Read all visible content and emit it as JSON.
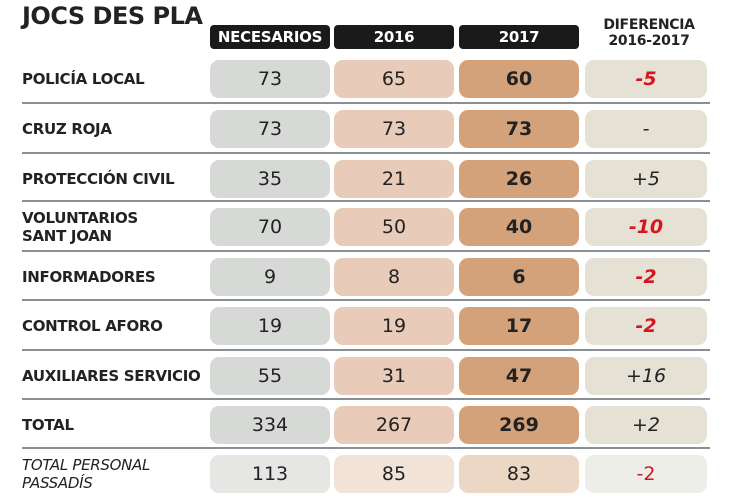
{
  "chart_data": {
    "type": "table",
    "title": "JOCS DES PLA",
    "columns": [
      "NECESARIOS",
      "2016",
      "2017",
      "DIFERENCIA 2016-2017"
    ],
    "rows": [
      {
        "label": "POLICÍA LOCAL",
        "necesarios": "73",
        "y2016": "65",
        "y2017": "60",
        "diferencia": "-5",
        "negative": true
      },
      {
        "label": "CRUZ ROJA",
        "necesarios": "73",
        "y2016": "73",
        "y2017": "73",
        "diferencia": "-",
        "negative": false
      },
      {
        "label": "PROTECCIÓN CIVIL",
        "necesarios": "35",
        "y2016": "21",
        "y2017": "26",
        "diferencia": "+5",
        "negative": false
      },
      {
        "label": "VOLUNTARIOS SANT JOAN",
        "label_lines": [
          "VOLUNTARIOS",
          "SANT JOAN"
        ],
        "necesarios": "70",
        "y2016": "50",
        "y2017": "40",
        "diferencia": "-10",
        "negative": true
      },
      {
        "label": "INFORMADORES",
        "necesarios": "9",
        "y2016": "8",
        "y2017": "6",
        "diferencia": "-2",
        "negative": true
      },
      {
        "label": "CONTROL AFORO",
        "necesarios": "19",
        "y2016": "19",
        "y2017": "17",
        "diferencia": "-2",
        "negative": true
      },
      {
        "label": "AUXILIARES SERVICIO",
        "necesarios": "55",
        "y2016": "31",
        "y2017": "47",
        "diferencia": "+16",
        "negative": false
      },
      {
        "label": "TOTAL",
        "necesarios": "334",
        "y2016": "267",
        "y2017": "269",
        "diferencia": "+2",
        "negative": false
      },
      {
        "label": "TOTAL PERSONAL PASSADÍS",
        "label_lines": [
          "TOTAL PERSONAL",
          "PASSADÍS"
        ],
        "necesarios": "113",
        "y2016": "85",
        "y2017": "83",
        "diferencia": "-2",
        "negative": true
      }
    ]
  },
  "header": {
    "title": "JOCS DES PLA",
    "col_necesarios": "NECESARIOS",
    "col_2016": "2016",
    "col_2017": "2017",
    "col_diff_line1": "DIFERENCIA",
    "col_diff_line2": "2016-2017"
  },
  "colors": {
    "necesarios": "#d7d9d7",
    "y2016": "#e8cbb8",
    "y2017": "#d3a27a",
    "diferencia": "#e5e2d5",
    "negative_text": "#d8141f",
    "header_bg": "#1a1a1a"
  }
}
